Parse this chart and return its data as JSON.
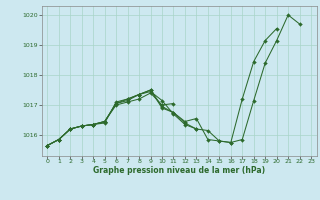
{
  "title": "Graphe pression niveau de la mer (hPa)",
  "background_color": "#cde8f0",
  "grid_color": "#a8d5c8",
  "line_color": "#2d6a2d",
  "xlim": [
    -0.5,
    23.5
  ],
  "ylim": [
    1015.3,
    1020.3
  ],
  "yticks": [
    1016,
    1017,
    1018,
    1019,
    1020
  ],
  "xticks": [
    0,
    1,
    2,
    3,
    4,
    5,
    6,
    7,
    8,
    9,
    10,
    11,
    12,
    13,
    14,
    15,
    16,
    17,
    18,
    19,
    20,
    21,
    22,
    23
  ],
  "series": [
    {
      "x": [
        0,
        1,
        2,
        3,
        4,
        5,
        6,
        7,
        8,
        9,
        10,
        11,
        12,
        13,
        14,
        15,
        16,
        17,
        18,
        19,
        20,
        21,
        22
      ],
      "y": [
        1015.65,
        1015.85,
        1016.2,
        1016.3,
        1016.35,
        1016.4,
        1017.1,
        1017.2,
        1017.35,
        1017.45,
        1017.15,
        1016.7,
        1016.35,
        1016.2,
        1016.15,
        1015.8,
        1015.75,
        1015.85,
        1017.15,
        1018.4,
        1019.15,
        1020.0,
        1019.7
      ]
    },
    {
      "x": [
        0,
        1,
        2,
        3,
        4,
        5,
        6,
        7,
        8,
        9,
        10,
        11,
        12,
        13,
        14,
        15,
        16,
        17,
        18,
        19,
        20
      ],
      "y": [
        1015.65,
        1015.85,
        1016.2,
        1016.3,
        1016.35,
        1016.45,
        1017.05,
        1017.15,
        1017.35,
        1017.5,
        1016.9,
        1016.75,
        1016.45,
        1016.55,
        1015.85,
        1015.8,
        1015.75,
        1017.2,
        1018.45,
        1019.15,
        1019.55
      ]
    },
    {
      "x": [
        0,
        1,
        2,
        3,
        4,
        5,
        6,
        7,
        8,
        9,
        10,
        11,
        12,
        13
      ],
      "y": [
        1015.65,
        1015.85,
        1016.2,
        1016.3,
        1016.35,
        1016.45,
        1017.05,
        1017.2,
        1017.35,
        1017.5,
        1016.95,
        1016.75,
        1016.4,
        1016.2
      ]
    },
    {
      "x": [
        0,
        1,
        2,
        3,
        4,
        5,
        6,
        7,
        8,
        9,
        10,
        11
      ],
      "y": [
        1015.65,
        1015.85,
        1016.2,
        1016.3,
        1016.35,
        1016.45,
        1017.0,
        1017.1,
        1017.2,
        1017.4,
        1017.0,
        1017.05
      ]
    }
  ],
  "figsize": [
    3.2,
    2.0
  ],
  "dpi": 100
}
